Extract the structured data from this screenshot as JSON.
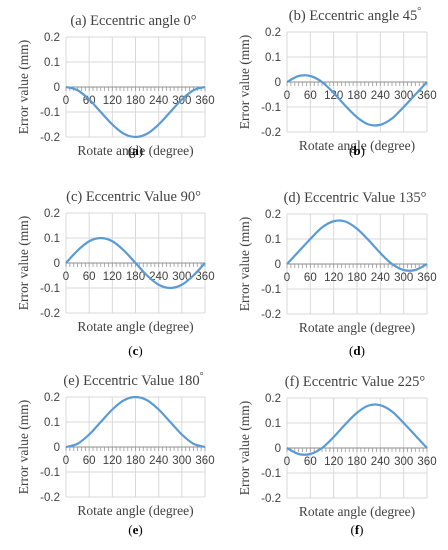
{
  "chart_data": [
    {
      "type": "line",
      "title": "(a) Eccentric angle 0°",
      "caption": "a",
      "xlabel": "Rotate angle (degree)",
      "ylabel": "Error value (mm)",
      "xlim": [
        0,
        360
      ],
      "ylim": [
        -0.2,
        0.2
      ],
      "xticks": [
        "0",
        "60",
        "120",
        "180",
        "240",
        "300",
        "360"
      ],
      "yticks": [
        "0.2",
        "0.1",
        "0",
        "-0.1",
        "-0.2"
      ],
      "series": [
        {
          "x": [
            0,
            30,
            60,
            90,
            120,
            150,
            180,
            210,
            240,
            270,
            300,
            330,
            360
          ],
          "values": [
            0,
            -0.013,
            -0.05,
            -0.1,
            -0.15,
            -0.187,
            -0.2,
            -0.187,
            -0.15,
            -0.1,
            -0.05,
            -0.013,
            0
          ]
        }
      ],
      "color": "#5b9bd5",
      "grid": true
    },
    {
      "type": "line",
      "title": "(b) Eccentric angle 45",
      "title_degree": "°",
      "caption": "b",
      "xlabel": "Rotate angle (degree)",
      "ylabel": "Error value (mm)",
      "xlim": [
        0,
        360
      ],
      "ylim": [
        -0.2,
        0.2
      ],
      "xticks": [
        "0",
        "60",
        "120",
        "180",
        "240",
        "300",
        "360"
      ],
      "yticks": [
        "0.2",
        "0.1",
        "0",
        "-0.1",
        "-0.2"
      ],
      "series": [
        {
          "x": [
            0,
            30,
            60,
            90,
            120,
            150,
            180,
            210,
            240,
            270,
            300,
            330,
            360
          ],
          "values": [
            0,
            0.024,
            0.024,
            0,
            -0.044,
            -0.095,
            -0.141,
            -0.17,
            -0.171,
            -0.146,
            -0.1,
            -0.05,
            0
          ]
        }
      ],
      "color": "#5b9bd5",
      "grid": true
    },
    {
      "type": "line",
      "title": "(c) Eccentric Value 90°",
      "caption": "c",
      "xlabel": "Rotate angle (degree)",
      "ylabel": "Error value (mm)",
      "xlim": [
        0,
        360
      ],
      "ylim": [
        -0.2,
        0.2
      ],
      "xticks": [
        "0",
        "60",
        "120",
        "180",
        "240",
        "300",
        "360"
      ],
      "yticks": [
        "0.2",
        "0.1",
        "0",
        "-0.1",
        "-0.2"
      ],
      "series": [
        {
          "x": [
            0,
            30,
            60,
            90,
            120,
            150,
            180,
            210,
            240,
            270,
            300,
            330,
            360
          ],
          "values": [
            0,
            0.05,
            0.087,
            0.1,
            0.087,
            0.05,
            0,
            -0.05,
            -0.087,
            -0.1,
            -0.087,
            -0.05,
            0
          ]
        }
      ],
      "color": "#5b9bd5",
      "grid": true
    },
    {
      "type": "line",
      "title": "(d) Eccentric Value 135°",
      "caption": "d",
      "xlabel": "Rotate angle (degree)",
      "ylabel": "Error value (mm)",
      "xlim": [
        0,
        360
      ],
      "ylim": [
        -0.2,
        0.2
      ],
      "xticks": [
        "0",
        "60",
        "120",
        "180",
        "240",
        "300",
        "360"
      ],
      "yticks": [
        "0.2",
        "0.1",
        "0",
        "-0.1",
        "-0.2"
      ],
      "series": [
        {
          "x": [
            0,
            30,
            60,
            90,
            120,
            150,
            180,
            210,
            240,
            270,
            300,
            330,
            360
          ],
          "values": [
            0,
            0.05,
            0.1,
            0.146,
            0.171,
            0.17,
            0.141,
            0.095,
            0.044,
            0,
            -0.024,
            -0.024,
            0
          ]
        }
      ],
      "color": "#5b9bd5",
      "grid": true
    },
    {
      "type": "line",
      "title": "(e) Eccentric Value 180",
      "title_degree": "°",
      "caption": "e",
      "xlabel": "Rotate angle (degree)",
      "ylabel": "Error value (mm)",
      "xlim": [
        0,
        360
      ],
      "ylim": [
        -0.2,
        0.2
      ],
      "xticks": [
        "0",
        "60",
        "120",
        "180",
        "240",
        "300",
        "360"
      ],
      "yticks": [
        "0.2",
        "0.1",
        "0",
        "-0.1",
        "-0.2"
      ],
      "series": [
        {
          "x": [
            0,
            30,
            60,
            90,
            120,
            150,
            180,
            210,
            240,
            270,
            300,
            330,
            360
          ],
          "values": [
            0,
            0.013,
            0.05,
            0.1,
            0.15,
            0.187,
            0.2,
            0.187,
            0.15,
            0.1,
            0.05,
            0.013,
            0
          ]
        }
      ],
      "color": "#5b9bd5",
      "grid": true
    },
    {
      "type": "line",
      "title": "(f) Eccentric Value 225°",
      "caption": "f",
      "xlabel": "Rotate angle (degree)",
      "ylabel": "Error value (mm)",
      "xlim": [
        0,
        360
      ],
      "ylim": [
        -0.2,
        0.2
      ],
      "xticks": [
        "0",
        "60",
        "120",
        "180",
        "240",
        "300",
        "360"
      ],
      "yticks": [
        "0.2",
        "0.1",
        "0",
        "-0.1",
        "-0.2"
      ],
      "series": [
        {
          "x": [
            0,
            30,
            60,
            90,
            120,
            150,
            180,
            210,
            240,
            270,
            300,
            330,
            360
          ],
          "values": [
            0,
            -0.024,
            -0.024,
            0,
            0.044,
            0.095,
            0.141,
            0.17,
            0.171,
            0.146,
            0.1,
            0.05,
            0
          ]
        }
      ],
      "color": "#5b9bd5",
      "grid": true
    }
  ]
}
